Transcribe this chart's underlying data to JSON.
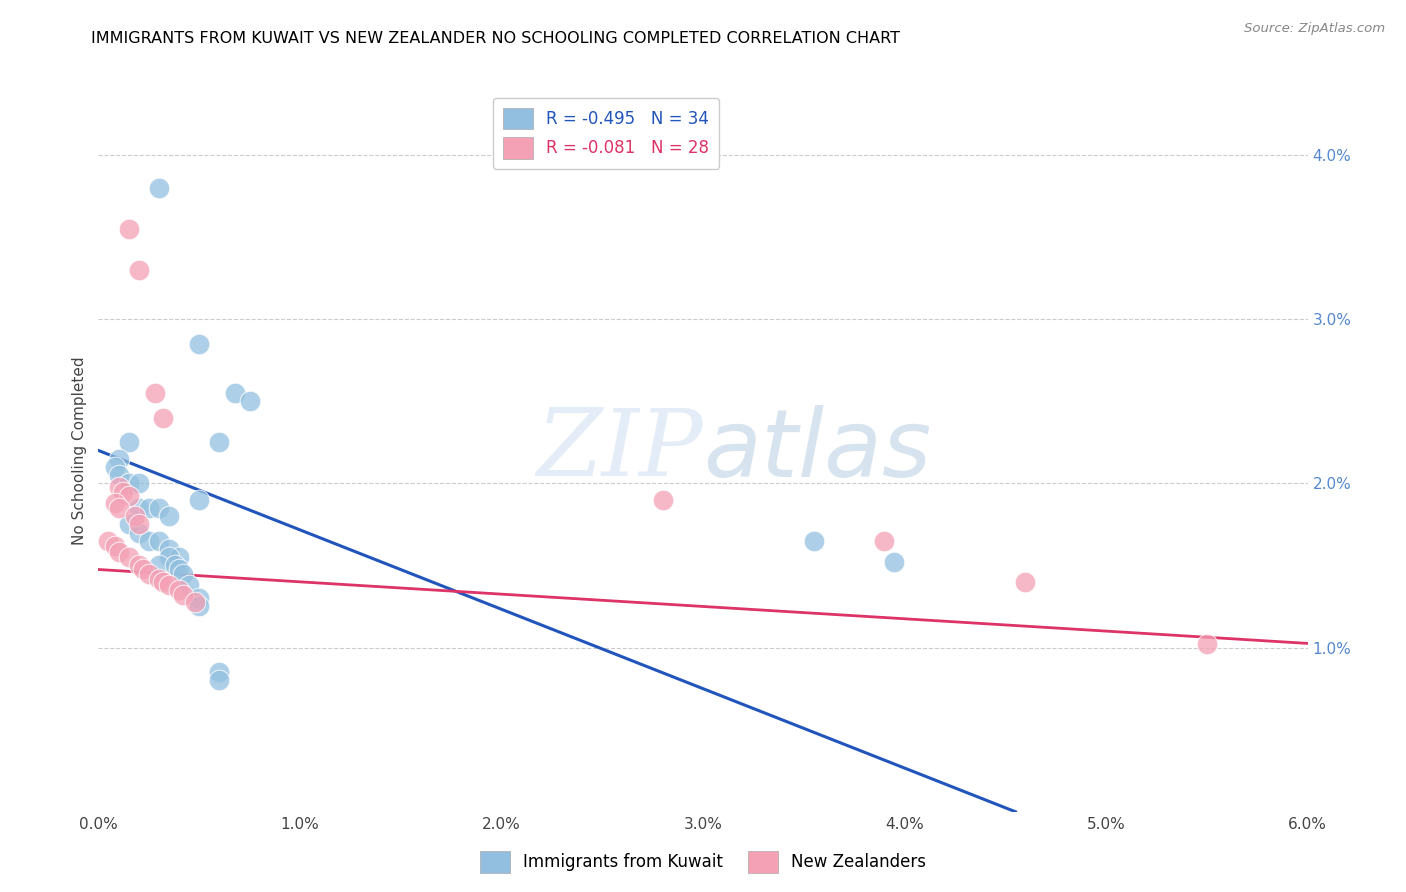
{
  "title": "IMMIGRANTS FROM KUWAIT VS NEW ZEALANDER NO SCHOOLING COMPLETED CORRELATION CHART",
  "source": "Source: ZipAtlas.com",
  "ylabel_left": "No Schooling Completed",
  "xlim": [
    0.0,
    0.06
  ],
  "ylim": [
    0.0,
    0.044
  ],
  "xticks": [
    0.0,
    0.01,
    0.02,
    0.03,
    0.04,
    0.05,
    0.06
  ],
  "yticks_right": [
    0.01,
    0.02,
    0.03,
    0.04
  ],
  "ytick_labels_right": [
    "1.0%",
    "2.0%",
    "3.0%",
    "4.0%"
  ],
  "xtick_labels": [
    "0.0%",
    "1.0%",
    "2.0%",
    "3.0%",
    "4.0%",
    "5.0%",
    "6.0%"
  ],
  "legend_r1": "R = -0.495",
  "legend_n1": "N = 34",
  "legend_r2": "R = -0.081",
  "legend_n2": "N = 28",
  "series1_label": "Immigrants from Kuwait",
  "series2_label": "New Zealanders",
  "series1_color": "#92bfdf",
  "series2_color": "#f4a0b5",
  "trendline1_color": "#2255bb",
  "trendline2_color": "#dd3366",
  "watermark_zip": "ZIP",
  "watermark_atlas": "atlas",
  "background_color": "#ffffff",
  "grid_color": "#cccccc",
  "right_axis_color": "#5588cc",
  "series1_points": [
    [
      0.003,
      0.038
    ],
    [
      0.005,
      0.0285
    ],
    [
      0.0068,
      0.0255
    ],
    [
      0.0075,
      0.025
    ],
    [
      0.006,
      0.0225
    ],
    [
      0.0015,
      0.0225
    ],
    [
      0.001,
      0.0215
    ],
    [
      0.0008,
      0.021
    ],
    [
      0.001,
      0.0205
    ],
    [
      0.0015,
      0.02
    ],
    [
      0.002,
      0.02
    ],
    [
      0.005,
      0.019
    ],
    [
      0.002,
      0.0185
    ],
    [
      0.0025,
      0.0185
    ],
    [
      0.003,
      0.0185
    ],
    [
      0.0035,
      0.018
    ],
    [
      0.0015,
      0.0175
    ],
    [
      0.002,
      0.017
    ],
    [
      0.0025,
      0.0165
    ],
    [
      0.003,
      0.0165
    ],
    [
      0.0035,
      0.016
    ],
    [
      0.004,
      0.0155
    ],
    [
      0.0035,
      0.0155
    ],
    [
      0.003,
      0.015
    ],
    [
      0.0038,
      0.015
    ],
    [
      0.004,
      0.0148
    ],
    [
      0.0042,
      0.0145
    ],
    [
      0.0045,
      0.0138
    ],
    [
      0.005,
      0.013
    ],
    [
      0.005,
      0.0125
    ],
    [
      0.006,
      0.0085
    ],
    [
      0.006,
      0.008
    ],
    [
      0.0395,
      0.0152
    ],
    [
      0.0355,
      0.0165
    ]
  ],
  "series2_points": [
    [
      0.0015,
      0.0355
    ],
    [
      0.002,
      0.033
    ],
    [
      0.0028,
      0.0255
    ],
    [
      0.0032,
      0.024
    ],
    [
      0.001,
      0.0198
    ],
    [
      0.0012,
      0.0195
    ],
    [
      0.0015,
      0.0192
    ],
    [
      0.0008,
      0.0188
    ],
    [
      0.001,
      0.0185
    ],
    [
      0.0018,
      0.018
    ],
    [
      0.002,
      0.0175
    ],
    [
      0.0005,
      0.0165
    ],
    [
      0.0008,
      0.0162
    ],
    [
      0.001,
      0.0158
    ],
    [
      0.0015,
      0.0155
    ],
    [
      0.002,
      0.015
    ],
    [
      0.0022,
      0.0148
    ],
    [
      0.0025,
      0.0145
    ],
    [
      0.003,
      0.0142
    ],
    [
      0.0032,
      0.014
    ],
    [
      0.0035,
      0.0138
    ],
    [
      0.004,
      0.0135
    ],
    [
      0.0042,
      0.0132
    ],
    [
      0.0048,
      0.0128
    ],
    [
      0.028,
      0.019
    ],
    [
      0.039,
      0.0165
    ],
    [
      0.046,
      0.014
    ],
    [
      0.055,
      0.0102
    ]
  ],
  "trendline1_x": [
    0.0,
    0.0455
  ],
  "trendline1_y": [
    0.022,
    0.0
  ],
  "trendline2_x": [
    0.0,
    0.06
  ],
  "trendline2_y": [
    0.01475,
    0.01025
  ]
}
